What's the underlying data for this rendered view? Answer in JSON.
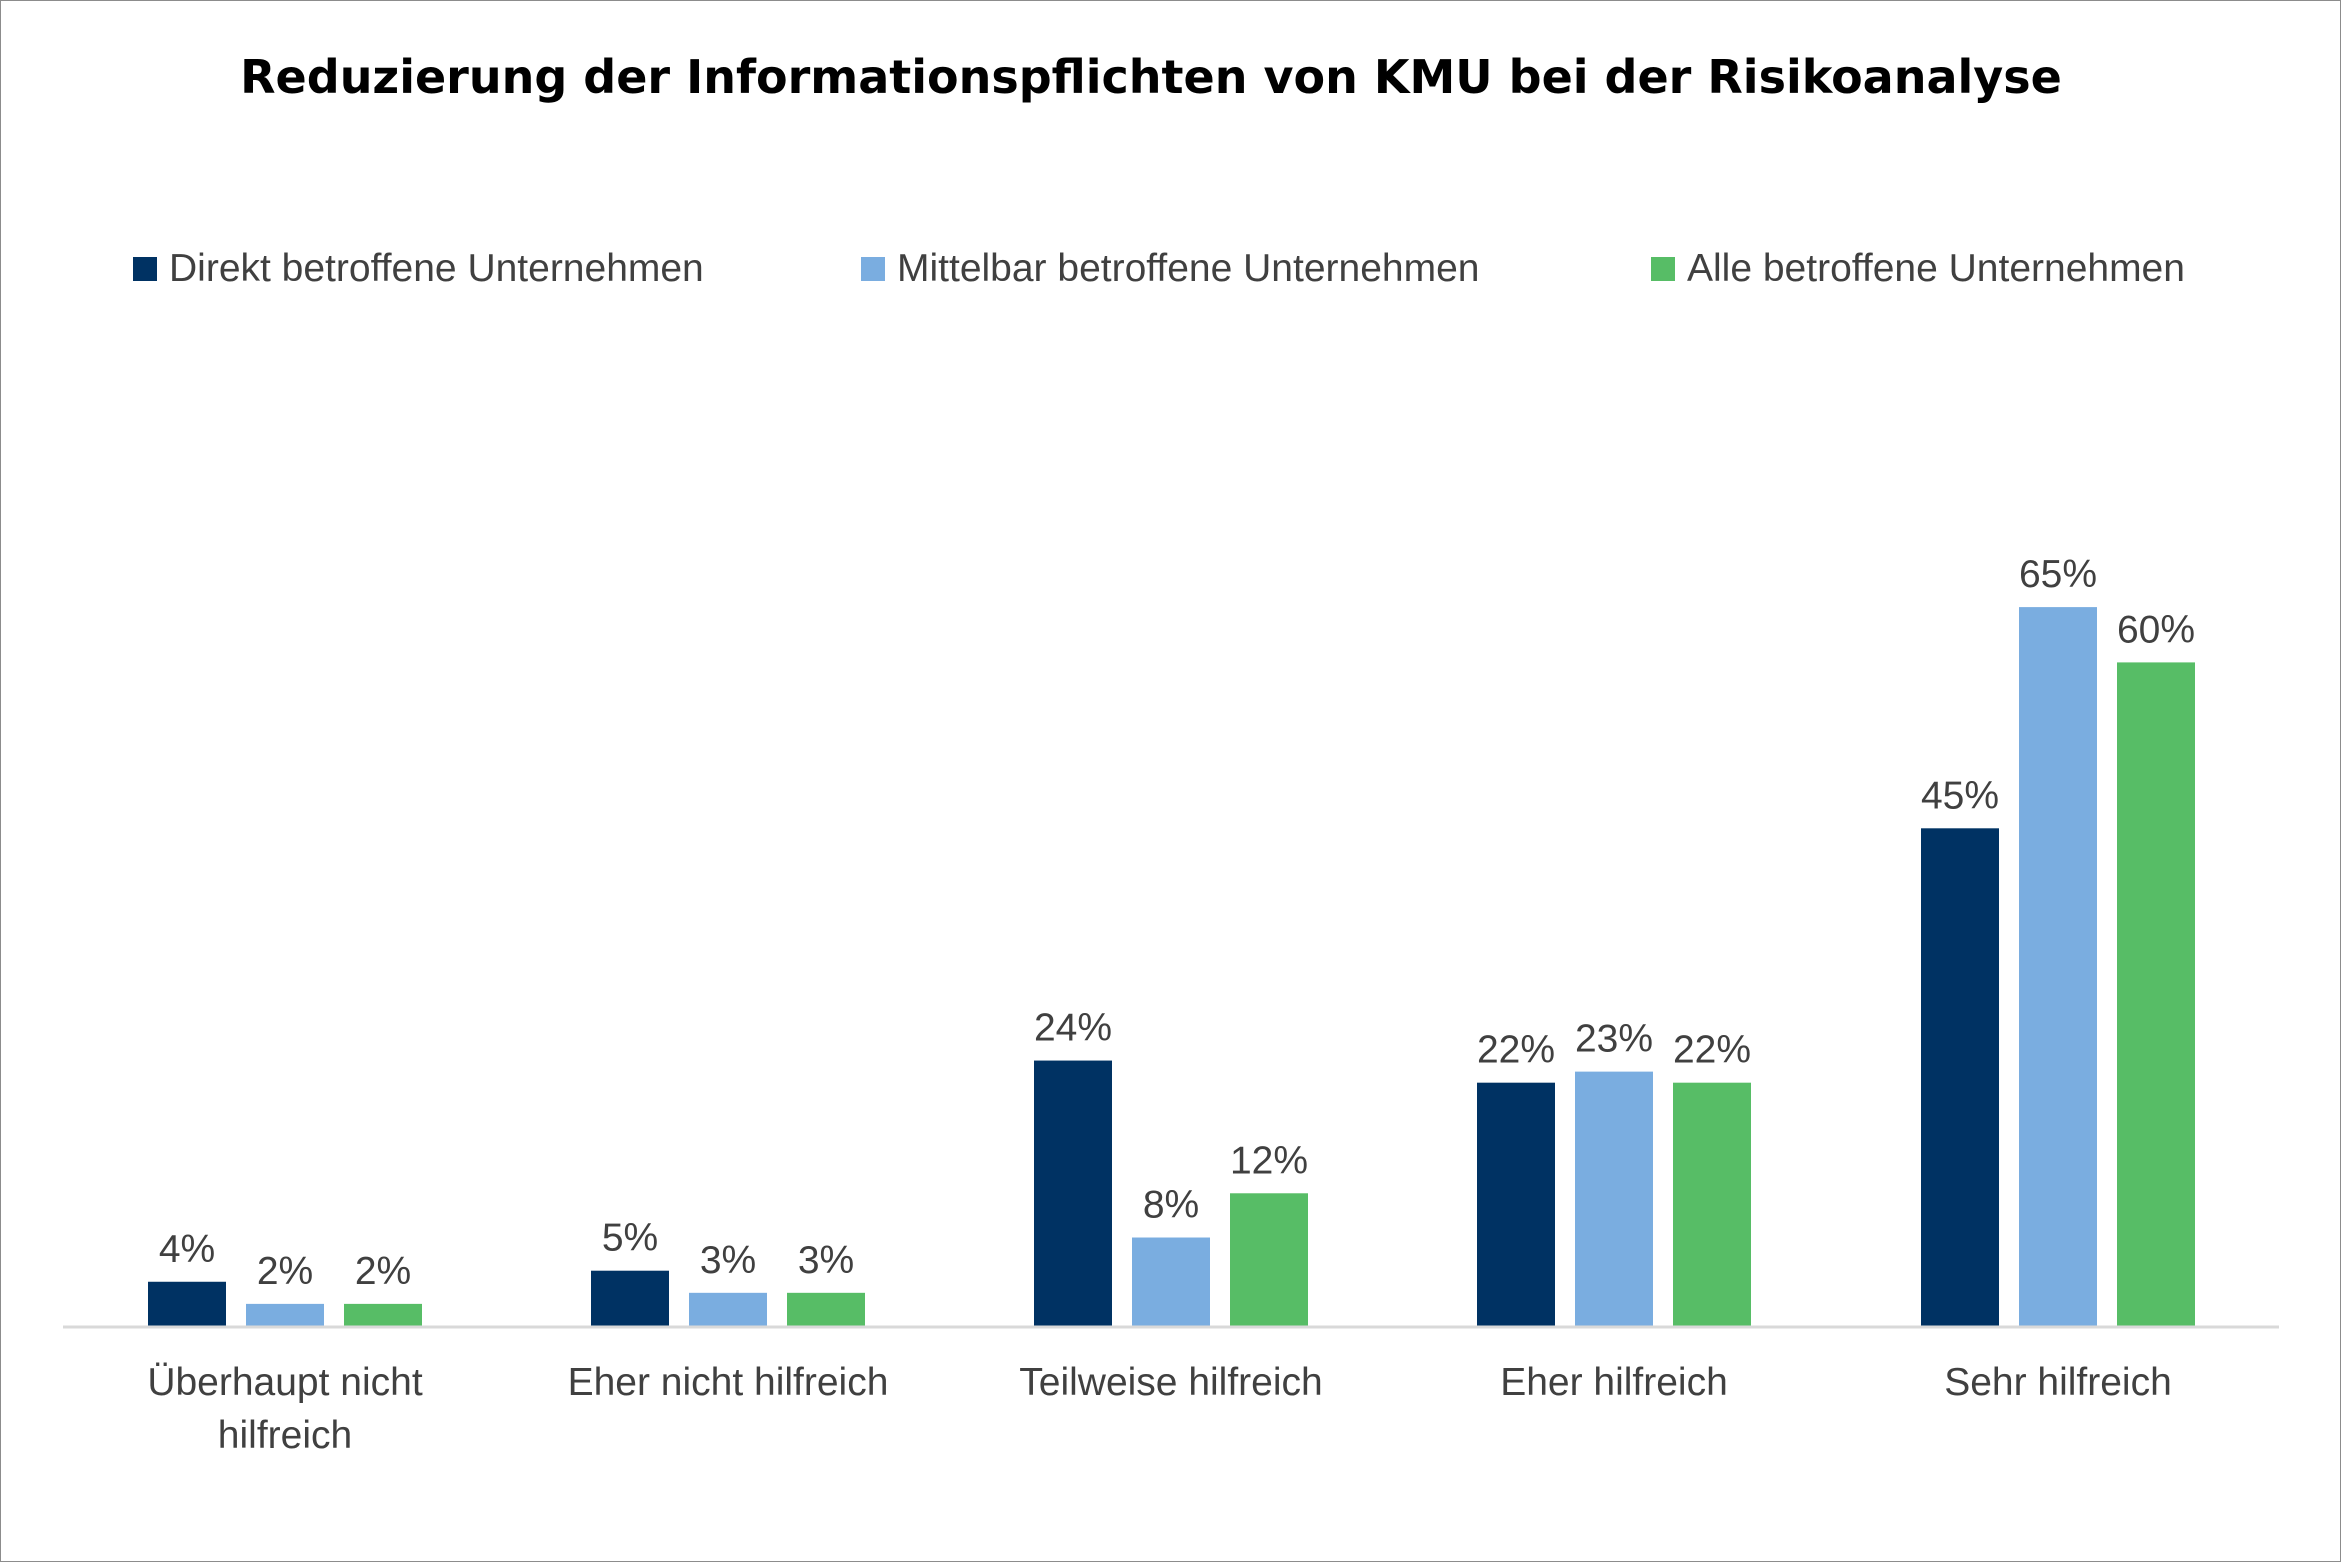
{
  "chart_data": {
    "type": "bar",
    "title": "Reduzierung der Informationspflichten von KMU bei der Risikoanalyse",
    "xlabel": "",
    "ylabel": "",
    "ylim": [
      0,
      70
    ],
    "grid": false,
    "legend_position": "top",
    "categories": [
      [
        "Überhaupt nicht",
        "hilfreich"
      ],
      [
        "Eher nicht hilfreich"
      ],
      [
        "Teilweise hilfreich"
      ],
      [
        "Eher hilfreich"
      ],
      [
        "Sehr hilfreich"
      ]
    ],
    "series": [
      {
        "name": "Direkt betroffene Unternehmen",
        "color": "#003263",
        "values": [
          4,
          5,
          24,
          22,
          45
        ],
        "labels": [
          "4%",
          "5%",
          "24%",
          "22%",
          "45%"
        ]
      },
      {
        "name": "Mittelbar betroffene Unternehmen",
        "color": "#7aade0",
        "values": [
          2,
          3,
          8,
          23,
          65
        ],
        "labels": [
          "2%",
          "3%",
          "8%",
          "23%",
          "65%"
        ]
      },
      {
        "name": "Alle betroffene Unternehmen",
        "color": "#57bd66",
        "values": [
          2,
          3,
          12,
          22,
          60
        ],
        "labels": [
          "2%",
          "3%",
          "12%",
          "22%",
          "60%"
        ]
      }
    ]
  }
}
